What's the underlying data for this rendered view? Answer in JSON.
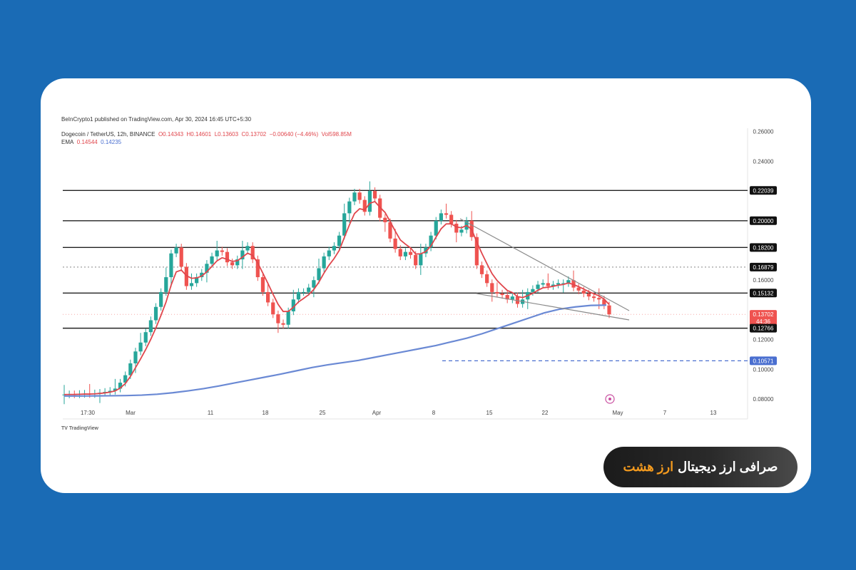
{
  "publisher": "BeInCrypto1 published on TradingView.com, Apr 30, 2024 16:45 UTC+5:30",
  "legend": {
    "symbol": "Dogecoin / TetherUS, 12h, BINANCE",
    "open": "O0.14343",
    "high": "H0.14601",
    "low": "L0.13603",
    "close": "C0.13702",
    "change": "−0.00640 (−4.46%)",
    "volume": "Vol598.85M"
  },
  "ema_legend": {
    "label": "EMA",
    "ema_fast": "0.14544",
    "ema_slow": "0.14235"
  },
  "tv_logo": "TV TradingView",
  "badge": {
    "text": "صرافی ارز دیجیتال",
    "accent": "ارز هشت"
  },
  "colors": {
    "background": "#1a6bb5",
    "card": "#ffffff",
    "up_candle": "#26a69a",
    "down_candle": "#ef5350",
    "ema_fast": "#e0464c",
    "ema_slow": "#6a89d4",
    "accent": "#f39a1e"
  },
  "chart_data": {
    "type": "candlestick",
    "ylim": [
      0.07,
      0.27
    ],
    "y_ticks": [
      "0.26000",
      "0.24000",
      "0.22039",
      "0.20000",
      "0.18200",
      "0.16879",
      "0.16000",
      "0.15132",
      "0.13702",
      "0.12766",
      "0.12000",
      "0.10571",
      "0.10000",
      "0.08000"
    ],
    "x_ticks": [
      "17:30",
      "Mar",
      "11",
      "18",
      "25",
      "Apr",
      "8",
      "15",
      "22",
      "May",
      "7",
      "13"
    ],
    "horizontal_levels": [
      {
        "value": 0.22039,
        "label": "0.22039",
        "style": "solid"
      },
      {
        "value": 0.2,
        "label": "0.20000",
        "style": "solid"
      },
      {
        "value": 0.182,
        "label": "0.18200",
        "style": "solid"
      },
      {
        "value": 0.16879,
        "label": "0.16879",
        "style": "dotted"
      },
      {
        "value": 0.15132,
        "label": "0.15132",
        "style": "solid"
      },
      {
        "value": 0.12766,
        "label": "0.12766",
        "style": "solid"
      },
      {
        "value": 0.10571,
        "label": "0.10571",
        "style": "dashed"
      }
    ],
    "current_price": {
      "value": 0.13702,
      "label": "0.13702",
      "countdown": "44:36"
    },
    "closes": [
      0.083,
      0.0832,
      0.0831,
      0.0834,
      0.0836,
      0.0833,
      0.0838,
      0.0842,
      0.0848,
      0.0855,
      0.087,
      0.091,
      0.096,
      0.104,
      0.112,
      0.118,
      0.125,
      0.133,
      0.142,
      0.152,
      0.162,
      0.178,
      0.182,
      0.169,
      0.156,
      0.158,
      0.162,
      0.165,
      0.171,
      0.176,
      0.18,
      0.179,
      0.172,
      0.17,
      0.174,
      0.18,
      0.183,
      0.174,
      0.162,
      0.152,
      0.145,
      0.137,
      0.131,
      0.13,
      0.139,
      0.147,
      0.152,
      0.152,
      0.155,
      0.16,
      0.168,
      0.176,
      0.18,
      0.183,
      0.19,
      0.205,
      0.213,
      0.219,
      0.214,
      0.206,
      0.22,
      0.215,
      0.202,
      0.199,
      0.188,
      0.181,
      0.176,
      0.179,
      0.177,
      0.17,
      0.178,
      0.182,
      0.19,
      0.2,
      0.205,
      0.204,
      0.198,
      0.192,
      0.194,
      0.2,
      0.189,
      0.17,
      0.164,
      0.158,
      0.152,
      0.151,
      0.15,
      0.147,
      0.149,
      0.144,
      0.147,
      0.152,
      0.154,
      0.157,
      0.158,
      0.156,
      0.157,
      0.158,
      0.158,
      0.16,
      0.155,
      0.153,
      0.151,
      0.149,
      0.148,
      0.147,
      0.143,
      0.137
    ],
    "ema_slow": [
      0.082,
      0.082,
      0.0821,
      0.0822,
      0.0823,
      0.0826,
      0.0832,
      0.0842,
      0.0855,
      0.087,
      0.0888,
      0.0908,
      0.0928,
      0.0948,
      0.0968,
      0.099,
      0.1012,
      0.103,
      0.1045,
      0.106,
      0.108,
      0.11,
      0.112,
      0.114,
      0.116,
      0.1185,
      0.121,
      0.124,
      0.1275,
      0.131,
      0.1345,
      0.138,
      0.1405,
      0.142,
      0.143,
      0.1432
    ]
  }
}
